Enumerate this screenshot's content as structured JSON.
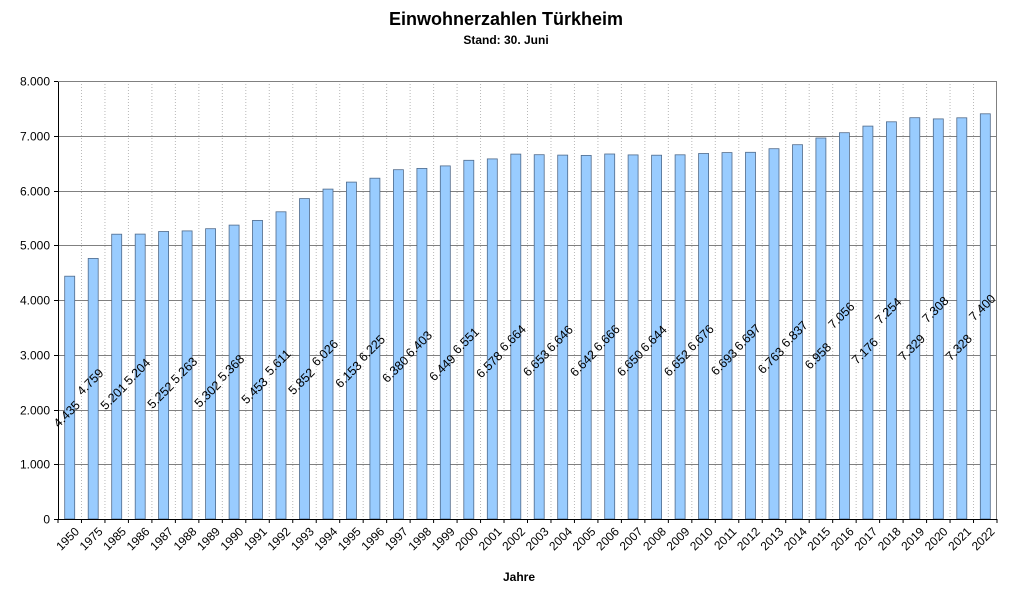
{
  "chart_data": {
    "type": "bar",
    "title": "Einwohnerzahlen Türkheim",
    "subtitle": "Stand: 30. Juni",
    "xlabel": "Jahre",
    "ylabel": "",
    "ylim": [
      0,
      8000
    ],
    "yticks": [
      0,
      1000,
      2000,
      3000,
      4000,
      5000,
      6000,
      7000,
      8000
    ],
    "ytick_labels": [
      "0",
      "1.000",
      "2.000",
      "3.000",
      "4.000",
      "5.000",
      "6.000",
      "7.000",
      "8.000"
    ],
    "grid": true,
    "legend": "none",
    "bar_color": "#99ccff",
    "bar_edge_color": "#4f6a8a",
    "categories": [
      "1950",
      "1975",
      "1985",
      "1986",
      "1987",
      "1988",
      "1989",
      "1990",
      "1991",
      "1992",
      "1993",
      "1994",
      "1995",
      "1996",
      "1997",
      "1998",
      "1999",
      "2000",
      "2001",
      "2002",
      "2003",
      "2004",
      "2005",
      "2006",
      "2007",
      "2008",
      "2009",
      "2010",
      "2011",
      "2012",
      "2013",
      "2014",
      "2015",
      "2016",
      "2017",
      "2018",
      "2019",
      "2020",
      "2021",
      "2022"
    ],
    "values": [
      4435,
      4759,
      5201,
      5204,
      5252,
      5263,
      5302,
      5368,
      5453,
      5611,
      5852,
      6026,
      6153,
      6225,
      6380,
      6403,
      6449,
      6551,
      6578,
      6664,
      6653,
      6646,
      6642,
      6666,
      6650,
      6644,
      6652,
      6676,
      6693,
      6697,
      6763,
      6837,
      6958,
      7056,
      7176,
      7254,
      7329,
      7308,
      7328,
      7400
    ],
    "value_labels": [
      "4.435",
      "4.759",
      "5.201",
      "5.204",
      "5.252",
      "5.263",
      "5.302",
      "5.368",
      "5.453",
      "5.611",
      "5.852",
      "6.026",
      "6.153",
      "6.225",
      "6.380",
      "6.403",
      "6.449",
      "6.551",
      "6.578",
      "6.664",
      "6.653",
      "6.646",
      "6.642",
      "6.666",
      "6.650",
      "6.644",
      "6.652",
      "6.676",
      "6.693",
      "6.697",
      "6.763",
      "6.837",
      "6.958",
      "7.056",
      "7.176",
      "7.254",
      "7.329",
      "7.308",
      "7.328",
      "7.400"
    ]
  }
}
